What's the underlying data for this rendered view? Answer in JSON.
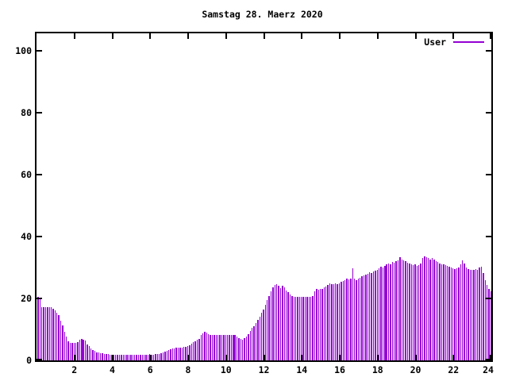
{
  "title": "Samstag 28. Maerz 2020",
  "legend": {
    "label": "User"
  },
  "colors": {
    "series": "#9400D3",
    "axis": "#000000",
    "background": "#ffffff"
  },
  "chart_data": {
    "type": "bar",
    "title": "Samstag 28. Maerz 2020",
    "series_name": "User",
    "xlabel": "",
    "ylabel": "",
    "xlim": [
      0,
      24
    ],
    "ylim": [
      0,
      105.6
    ],
    "x_ticks": [
      2,
      4,
      6,
      8,
      10,
      12,
      14,
      16,
      18,
      20,
      22,
      24
    ],
    "y_ticks": [
      0,
      20,
      40,
      60,
      80,
      100
    ],
    "grid": false,
    "legend_position": "top-right",
    "x_start_hour": 0.05,
    "x_interval_hours": 0.1,
    "values": [
      20.5,
      20.0,
      17.2,
      17.2,
      17.3,
      17.2,
      17.2,
      17.1,
      16.6,
      16.2,
      15.4,
      14.7,
      12.9,
      11.2,
      9.3,
      7.6,
      6.1,
      5.7,
      5.6,
      5.6,
      5.7,
      6.0,
      6.6,
      6.9,
      6.8,
      6.3,
      5.2,
      4.5,
      3.9,
      3.4,
      3.0,
      2.7,
      2.5,
      2.3,
      2.2,
      2.1,
      2.0,
      2.0,
      1.9,
      1.9,
      1.9,
      1.8,
      1.9,
      1.8,
      1.9,
      1.8,
      1.9,
      1.9,
      1.8,
      1.9,
      1.9,
      1.8,
      1.9,
      1.9,
      1.8,
      1.9,
      1.8,
      1.9,
      1.9,
      2.0,
      1.9,
      1.9,
      2.0,
      2.0,
      2.1,
      2.4,
      2.7,
      2.9,
      3.1,
      3.3,
      3.6,
      3.8,
      3.9,
      4.0,
      4.0,
      4.1,
      4.2,
      4.3,
      4.4,
      4.6,
      5.0,
      5.4,
      5.8,
      6.2,
      6.6,
      7.0,
      8.1,
      8.8,
      9.3,
      8.9,
      8.5,
      8.3,
      8.2,
      8.3,
      8.2,
      8.1,
      8.2,
      8.3,
      8.2,
      8.1,
      8.2,
      8.3,
      8.2,
      8.3,
      8.1,
      7.8,
      7.3,
      6.9,
      6.8,
      7.1,
      7.8,
      8.4,
      9.4,
      10.4,
      11.1,
      12.0,
      13.0,
      14.1,
      15.4,
      16.5,
      18.0,
      19.4,
      20.9,
      22.4,
      23.5,
      24.3,
      24.5,
      24.0,
      23.4,
      24.2,
      23.7,
      22.6,
      22.0,
      21.4,
      20.9,
      20.6,
      20.5,
      20.4,
      20.6,
      20.5,
      20.4,
      20.5,
      20.6,
      20.4,
      20.5,
      20.7,
      22.4,
      23.0,
      22.7,
      23.1,
      23.2,
      23.6,
      23.9,
      24.3,
      24.8,
      24.5,
      24.7,
      25.0,
      24.6,
      25.0,
      25.3,
      25.6,
      26.0,
      26.4,
      26.2,
      26.5,
      29.7,
      26.3,
      26.0,
      26.4,
      26.6,
      27.2,
      27.5,
      27.8,
      28.0,
      28.4,
      28.2,
      28.6,
      28.9,
      29.3,
      29.8,
      30.2,
      30.0,
      30.6,
      31.0,
      31.4,
      31.0,
      31.9,
      31.5,
      32.0,
      32.2,
      33.4,
      32.6,
      32.4,
      32.0,
      31.6,
      31.2,
      31.0,
      30.7,
      31.0,
      30.6,
      30.8,
      31.2,
      33.0,
      33.6,
      33.3,
      33.0,
      32.6,
      33.0,
      32.5,
      32.1,
      31.7,
      31.3,
      31.0,
      31.1,
      30.7,
      30.5,
      30.2,
      30.0,
      29.7,
      29.6,
      29.8,
      30.1,
      31.0,
      32.3,
      31.4,
      29.9,
      29.4,
      29.2,
      29.3,
      29.2,
      29.4,
      29.3,
      30.0,
      30.3,
      28.2,
      26.0,
      24.3,
      23.2,
      22.3
    ]
  }
}
